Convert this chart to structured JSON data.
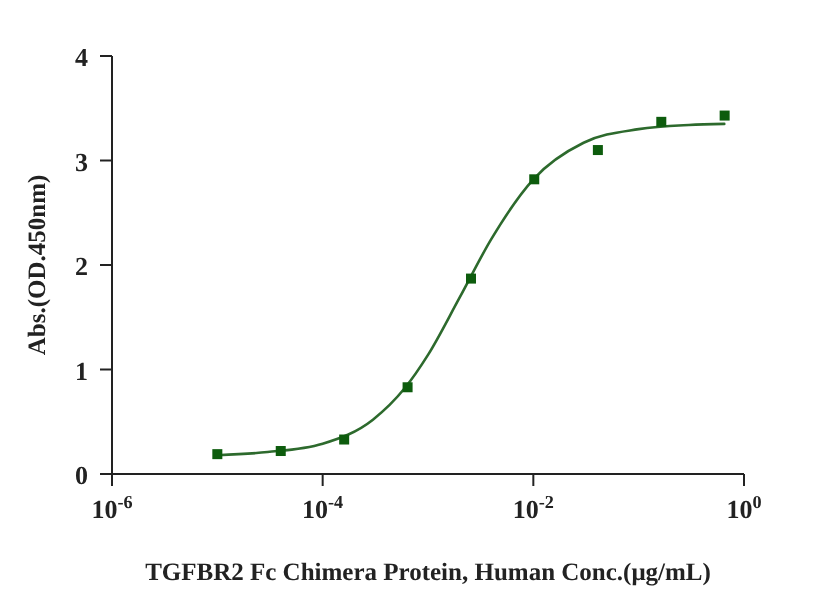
{
  "chart_data": {
    "type": "scatter",
    "xlabel": "TGFBR2 Fc Chimera Protein, Human Conc.(μg/mL)",
    "ylabel": "Abs.(OD.450nm)",
    "log": "x",
    "xlim": [
      1e-06,
      1
    ],
    "xticks": [
      {
        "value": 1e-06,
        "label": "10$^{-6}$"
      },
      {
        "value": 0.0001,
        "label": "10$^{-4}$"
      },
      {
        "value": 0.01,
        "label": "10$^{-2}$"
      },
      {
        "value": 1,
        "label": "10$^{0}$"
      }
    ],
    "ylim": [
      0,
      4
    ],
    "yticks": [
      0,
      1,
      2,
      3,
      4
    ],
    "series": [
      {
        "type": "line",
        "color": "#2d6a2d",
        "marker": "none",
        "line_style": "solid",
        "x": [
          1e-05,
          3e-05,
          0.0001,
          0.0003,
          0.0006,
          0.001,
          0.002,
          0.004,
          0.01,
          0.03,
          0.1,
          0.3,
          0.65
        ],
        "values": [
          0.18,
          0.21,
          0.29,
          0.52,
          0.82,
          1.14,
          1.69,
          2.25,
          2.82,
          3.17,
          3.3,
          3.34,
          3.35
        ]
      },
      {
        "color": "#0d5c0d",
        "marker": "square",
        "x": [
          1e-05,
          4e-05,
          0.00016,
          0.00064,
          0.00256,
          0.0102,
          0.041,
          0.164,
          0.655
        ],
        "values": [
          0.19,
          0.22,
          0.33,
          0.83,
          1.87,
          2.82,
          3.1,
          3.37,
          3.43
        ]
      }
    ]
  }
}
